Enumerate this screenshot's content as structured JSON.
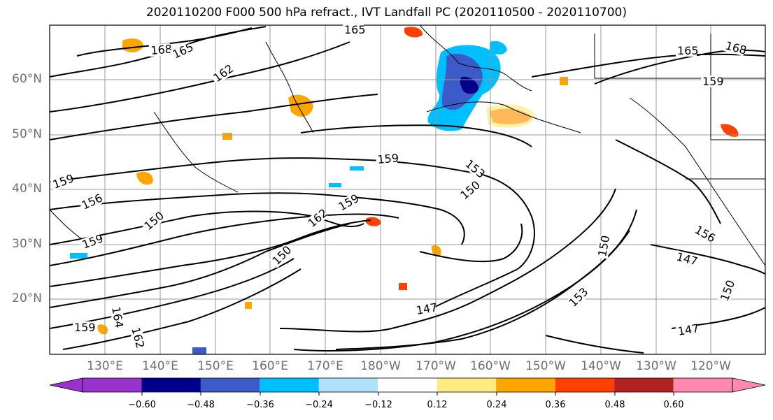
{
  "title": "2020110200 F000 500 hPa refract., IVT Landfall PC (2020110500 - 2020110700)",
  "lat_labels": [
    "60°N",
    "50°N",
    "40°N",
    "30°N",
    "20°N"
  ],
  "lon_labels": [
    "130°E",
    "140°E",
    "150°E",
    "160°E",
    "170°E",
    "180°W",
    "170°W",
    "160°W",
    "150°W",
    "140°W",
    "130°W",
    "120°W"
  ],
  "contour_labels": [
    "165",
    "168",
    "165",
    "162",
    "165",
    "168",
    "159",
    "159",
    "153",
    "159",
    "159",
    "156",
    "150",
    "159",
    "150",
    "162",
    "150",
    "147",
    "164",
    "162",
    "159",
    "147",
    "153",
    "150",
    "147",
    "150",
    "156"
  ],
  "colorbar": {
    "tick_labels": [
      "−0.60",
      "−0.48",
      "−0.36",
      "−0.24",
      "−0.12",
      "0.12",
      "0.24",
      "0.36",
      "0.48",
      "0.60"
    ],
    "colors": [
      "#9932cc",
      "#00008b",
      "#3c5ac8",
      "#00bfff",
      "#b0e0fa",
      "#ffffff",
      "#ffeb80",
      "#ffa500",
      "#ff4000",
      "#b22222",
      "#ff88b0"
    ]
  },
  "colors": {
    "contour": "#000000",
    "gridline": "#9a9a9a",
    "axis_label": "#6e6e6e"
  }
}
